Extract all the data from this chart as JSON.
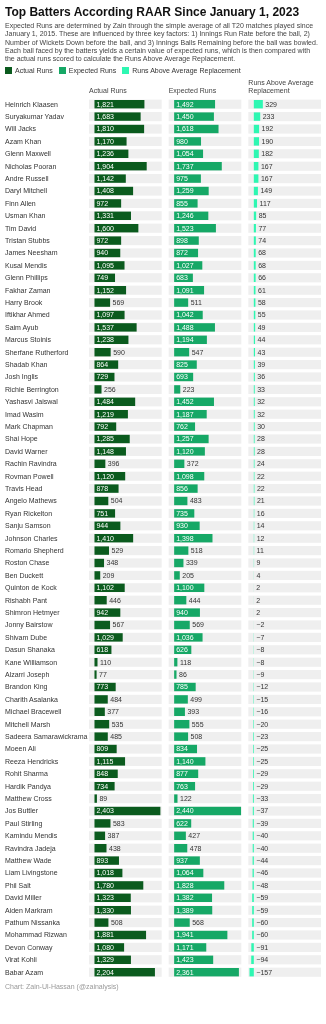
{
  "chart_data": [
    {
      "type": "bar",
      "orientation": "horizontal",
      "title": "Top Batters According RAAR Since January 1, 2023",
      "subtitle": "Expected Runs are determined by Zain through the simple average of all T20 matches played since January 1, 2015. These are influenced by three key factors: 1) Innings Run Rate before the ball, 2) Number of Wickets Down before the ball, and 3) Innings Balls Remaining before the ball was bowled. Each ball faced by the batters yields a certain value of expected runs, which is then compared with the actual runs scored to calculate the Runs Above Average Replacement.",
      "annotations": [
        "Chart: Zain-Ul-Hassan (@zainalysis)"
      ],
      "legend": "top left",
      "tick_labels": "y",
      "data_labels": true,
      "xlim": [
        -200,
        2450
      ],
      "categories": [
        "Heinrich Klaasen",
        "Suryakumar Yadav",
        "Will Jacks",
        "Azam Khan",
        "Glenn Maxwell",
        "Nicholas Pooran",
        "Andre Russell",
        "Daryl Mitchell",
        "Finn Allen",
        "Usman Khan",
        "Tim David",
        "Tristan Stubbs",
        "James Neesham",
        "Kusal Mendis",
        "Glenn Phillips",
        "Fakhar Zaman",
        "Harry Brook",
        "Iftikhar Ahmed",
        "Saim Ayub",
        "Marcus Stoinis",
        "Sherfane Rutherford",
        "Shadab Khan",
        "Josh Inglis",
        "Richie Berrington",
        "Yashasvi Jaiswal",
        "Imad Wasim",
        "Mark Chapman",
        "Shai Hope",
        "David Warner",
        "Rachin Ravindra",
        "Rovman Powell",
        "Travis Head",
        "Angelo Mathews",
        "Ryan Rickelton",
        "Sanju Samson",
        "Johnson Charles",
        "Romario Shepherd",
        "Roston Chase",
        "Ben Duckett",
        "Quinton de Kock",
        "Rishabh Pant",
        "Shimron Hetmyer",
        "Jonny Bairstow",
        "Shivam Dube",
        "Dasun Shanaka",
        "Kane Williamson",
        "Alzarri Joseph",
        "Brandon King",
        "Charith Asalanka",
        "Michael Bracewell",
        "Mitchell Marsh",
        "Sadeera Samarawickrama",
        "Moeen Ali",
        "Reeza Hendricks",
        "Rohit Sharma",
        "Hardik Pandya",
        "Matthew Cross",
        "Jos Buttler",
        "Paul Stirling",
        "Kamindu Mendis",
        "Ravindra Jadeja",
        "Matthew Wade",
        "Liam Livingstone",
        "Phil Salt",
        "David Miller",
        "Aiden Markram",
        "Pathum Nissanka",
        "Mohammad Rizwan",
        "Devon Conway",
        "Virat Kohli",
        "Babar Azam"
      ],
      "series": [
        {
          "name": "Actual Runs",
          "color": "#0b5b1e",
          "values": [
            1821,
            1683,
            1810,
            1170,
            1236,
            1904,
            1142,
            1408,
            972,
            1331,
            1600,
            972,
            940,
            1095,
            749,
            1152,
            569,
            1097,
            1537,
            1238,
            590,
            864,
            729,
            256,
            1484,
            1219,
            792,
            1285,
            1148,
            396,
            1120,
            878,
            504,
            751,
            944,
            1410,
            529,
            348,
            209,
            1102,
            446,
            942,
            567,
            1029,
            618,
            110,
            77,
            773,
            484,
            377,
            535,
            485,
            809,
            1115,
            848,
            734,
            89,
            2403,
            583,
            387,
            438,
            893,
            1018,
            1780,
            1323,
            1330,
            508,
            1881,
            1080,
            1329,
            2204
          ],
          "value_labels": [
            "1,821",
            "1,683",
            "1,810",
            "1,170",
            "1,236",
            "1,904",
            "1,142",
            "1,408",
            "972",
            "1,331",
            "1,600",
            "972",
            "940",
            "1,095",
            "749",
            "1,152",
            "569",
            "1,097",
            "1,537",
            "1,238",
            "590",
            "864",
            "729",
            "256",
            "1,484",
            "1,219",
            "792",
            "1,285",
            "1,148",
            "396",
            "1,120",
            "878",
            "504",
            "751",
            "944",
            "1,410",
            "529",
            "348",
            "209",
            "1,102",
            "446",
            "942",
            "567",
            "1,029",
            "618",
            "110",
            "77",
            "773",
            "484",
            "377",
            "535",
            "485",
            "809",
            "1,115",
            "848",
            "734",
            "89",
            "2,403",
            "583",
            "387",
            "438",
            "893",
            "1,018",
            "1,780",
            "1,323",
            "1,330",
            "508",
            "1,881",
            "1,080",
            "1,329",
            "2,204"
          ]
        }
      ]
    },
    {
      "type": "bar",
      "orientation": "horizontal",
      "legend": "top left",
      "tick_labels": false,
      "xlim": [
        -200,
        2450
      ],
      "categories": [
        "Heinrich Klaasen",
        "Suryakumar Yadav",
        "Will Jacks",
        "Azam Khan",
        "Glenn Maxwell",
        "Nicholas Pooran",
        "Andre Russell",
        "Daryl Mitchell",
        "Finn Allen",
        "Usman Khan",
        "Tim David",
        "Tristan Stubbs",
        "James Neesham",
        "Kusal Mendis",
        "Glenn Phillips",
        "Fakhar Zaman",
        "Harry Brook",
        "Iftikhar Ahmed",
        "Saim Ayub",
        "Marcus Stoinis",
        "Sherfane Rutherford",
        "Shadab Khan",
        "Josh Inglis",
        "Richie Berrington",
        "Yashasvi Jaiswal",
        "Imad Wasim",
        "Mark Chapman",
        "Shai Hope",
        "David Warner",
        "Rachin Ravindra",
        "Rovman Powell",
        "Travis Head",
        "Angelo Mathews",
        "Ryan Rickelton",
        "Sanju Samson",
        "Johnson Charles",
        "Romario Shepherd",
        "Roston Chase",
        "Ben Duckett",
        "Quinton de Kock",
        "Rishabh Pant",
        "Shimron Hetmyer",
        "Jonny Bairstow",
        "Shivam Dube",
        "Dasun Shanaka",
        "Kane Williamson",
        "Alzarri Joseph",
        "Brandon King",
        "Charith Asalanka",
        "Michael Bracewell",
        "Mitchell Marsh",
        "Sadeera Samarawickrama",
        "Moeen Ali",
        "Reeza Hendricks",
        "Rohit Sharma",
        "Hardik Pandya",
        "Matthew Cross",
        "Jos Buttler",
        "Paul Stirling",
        "Kamindu Mendis",
        "Ravindra Jadeja",
        "Matthew Wade",
        "Liam Livingstone",
        "Phil Salt",
        "David Miller",
        "Aiden Markram",
        "Pathum Nissanka",
        "Mohammad Rizwan",
        "Devon Conway",
        "Virat Kohli",
        "Babar Azam"
      ],
      "data_labels": true,
      "series": [
        {
          "name": "Expected Runs",
          "color": "#16a866",
          "values": [
            1492,
            1450,
            1618,
            980,
            1054,
            1737,
            975,
            1259,
            855,
            1246,
            1523,
            898,
            872,
            1027,
            683,
            1091,
            511,
            1042,
            1488,
            1194,
            547,
            825,
            693,
            223,
            1452,
            1187,
            762,
            1257,
            1120,
            372,
            1098,
            856,
            483,
            735,
            930,
            1398,
            518,
            339,
            205,
            1100,
            444,
            940,
            569,
            1036,
            626,
            118,
            86,
            785,
            499,
            393,
            555,
            508,
            834,
            1140,
            877,
            763,
            122,
            2440,
            622,
            427,
            478,
            937,
            1064,
            1828,
            1382,
            1389,
            568,
            1941,
            1171,
            1423,
            2361
          ],
          "value_labels": [
            "1,492",
            "1,450",
            "1,618",
            "980",
            "1,054",
            "1,737",
            "975",
            "1,259",
            "855",
            "1,246",
            "1,523",
            "898",
            "872",
            "1,027",
            "683",
            "1,091",
            "511",
            "1,042",
            "1,488",
            "1,194",
            "547",
            "825",
            "693",
            "223",
            "1,452",
            "1,187",
            "762",
            "1,257",
            "1,120",
            "372",
            "1,098",
            "856",
            "483",
            "735",
            "930",
            "1,398",
            "518",
            "339",
            "205",
            "1,100",
            "444",
            "940",
            "569",
            "1,036",
            "626",
            "118",
            "86",
            "785",
            "499",
            "393",
            "555",
            "508",
            "834",
            "1,140",
            "877",
            "763",
            "122",
            "2,440",
            "622",
            "427",
            "478",
            "937",
            "1,064",
            "1,828",
            "1,382",
            "1,389",
            "568",
            "1,941",
            "1,171",
            "1,423",
            "2,361"
          ]
        }
      ]
    },
    {
      "type": "bar",
      "orientation": "horizontal",
      "legend": "top left",
      "tick_labels": false,
      "xlim": [
        -200,
        2450
      ],
      "categories": [
        "Heinrich Klaasen",
        "Suryakumar Yadav",
        "Will Jacks",
        "Azam Khan",
        "Glenn Maxwell",
        "Nicholas Pooran",
        "Andre Russell",
        "Daryl Mitchell",
        "Finn Allen",
        "Usman Khan",
        "Tim David",
        "Tristan Stubbs",
        "James Neesham",
        "Kusal Mendis",
        "Glenn Phillips",
        "Fakhar Zaman",
        "Harry Brook",
        "Iftikhar Ahmed",
        "Saim Ayub",
        "Marcus Stoinis",
        "Sherfane Rutherford",
        "Shadab Khan",
        "Josh Inglis",
        "Richie Berrington",
        "Yashasvi Jaiswal",
        "Imad Wasim",
        "Mark Chapman",
        "Shai Hope",
        "David Warner",
        "Rachin Ravindra",
        "Rovman Powell",
        "Travis Head",
        "Angelo Mathews",
        "Ryan Rickelton",
        "Sanju Samson",
        "Johnson Charles",
        "Romario Shepherd",
        "Roston Chase",
        "Ben Duckett",
        "Quinton de Kock",
        "Rishabh Pant",
        "Shimron Hetmyer",
        "Jonny Bairstow",
        "Shivam Dube",
        "Dasun Shanaka",
        "Kane Williamson",
        "Alzarri Joseph",
        "Brandon King",
        "Charith Asalanka",
        "Michael Bracewell",
        "Mitchell Marsh",
        "Sadeera Samarawickrama",
        "Moeen Ali",
        "Reeza Hendricks",
        "Rohit Sharma",
        "Hardik Pandya",
        "Matthew Cross",
        "Jos Buttler",
        "Paul Stirling",
        "Kamindu Mendis",
        "Ravindra Jadeja",
        "Matthew Wade",
        "Liam Livingstone",
        "Phil Salt",
        "David Miller",
        "Aiden Markram",
        "Pathum Nissanka",
        "Mohammad Rizwan",
        "Devon Conway",
        "Virat Kohli",
        "Babar Azam"
      ],
      "data_labels": true,
      "series": [
        {
          "name": "Runs Above Average Replacement",
          "color": "#2ef7b2",
          "values": [
            329,
            233,
            192,
            190,
            182,
            167,
            167,
            149,
            117,
            85,
            77,
            74,
            68,
            68,
            66,
            61,
            58,
            55,
            49,
            44,
            43,
            39,
            36,
            33,
            32,
            32,
            30,
            28,
            28,
            24,
            22,
            22,
            21,
            16,
            14,
            12,
            11,
            9,
            4,
            2,
            2,
            2,
            -2,
            -7,
            -8,
            -8,
            -9,
            -12,
            -15,
            -16,
            -20,
            -23,
            -25,
            -25,
            -29,
            -29,
            -33,
            -37,
            -39,
            -40,
            -40,
            -44,
            -46,
            -48,
            -59,
            -59,
            -60,
            -60,
            -91,
            -94,
            -157
          ],
          "value_labels": [
            "329",
            "233",
            "192",
            "190",
            "182",
            "167",
            "167",
            "149",
            "117",
            "85",
            "77",
            "74",
            "68",
            "68",
            "66",
            "61",
            "58",
            "55",
            "49",
            "44",
            "43",
            "39",
            "36",
            "33",
            "32",
            "32",
            "30",
            "28",
            "28",
            "24",
            "22",
            "22",
            "21",
            "16",
            "14",
            "12",
            "11",
            "9",
            "4",
            "2",
            "2",
            "2",
            "−2",
            "−7",
            "−8",
            "−8",
            "−9",
            "−12",
            "−15",
            "−16",
            "−20",
            "−23",
            "−25",
            "−25",
            "−29",
            "−29",
            "−33",
            "−37",
            "−39",
            "−40",
            "−40",
            "−44",
            "−46",
            "−48",
            "−59",
            "−59",
            "−60",
            "−60",
            "−91",
            "−94",
            "−157"
          ]
        }
      ]
    }
  ]
}
